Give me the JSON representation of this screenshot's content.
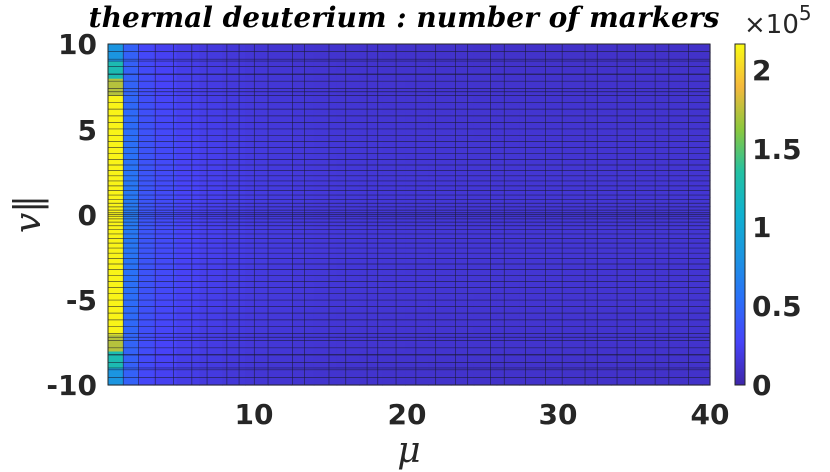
{
  "chart_data": {
    "type": "heatmap",
    "title": "thermal deuterium : number of markers",
    "xlabel": "μ",
    "ylabel": "v‖",
    "x_ticks": [
      "10",
      "20",
      "30",
      "40"
    ],
    "y_ticks": [
      "10",
      "5",
      "0",
      "-5",
      "-10"
    ],
    "xlim": [
      0.5,
      40
    ],
    "ylim": [
      -10,
      10
    ],
    "colorbar": {
      "ticks": [
        "0",
        "0.5",
        "1",
        "1.5",
        "2"
      ],
      "range": [
        0,
        215000
      ],
      "exponent_label": "×10",
      "exponent_power": "5",
      "colormap": "parula"
    },
    "grid": "irregular mesh with dense cells near v‖ = 0 and near small μ",
    "values_note": "markers concentrated in lowest μ column: ~2.1×10^5 for |v‖| < 7, ~1.7×10^5 near |v‖| ≈ 7.5, ~0.8×10^5 at |v‖| ≈ 9-10; second column ~0.6×10^5; elsewhere 0.1-0.3×10^5 decreasing with μ"
  }
}
